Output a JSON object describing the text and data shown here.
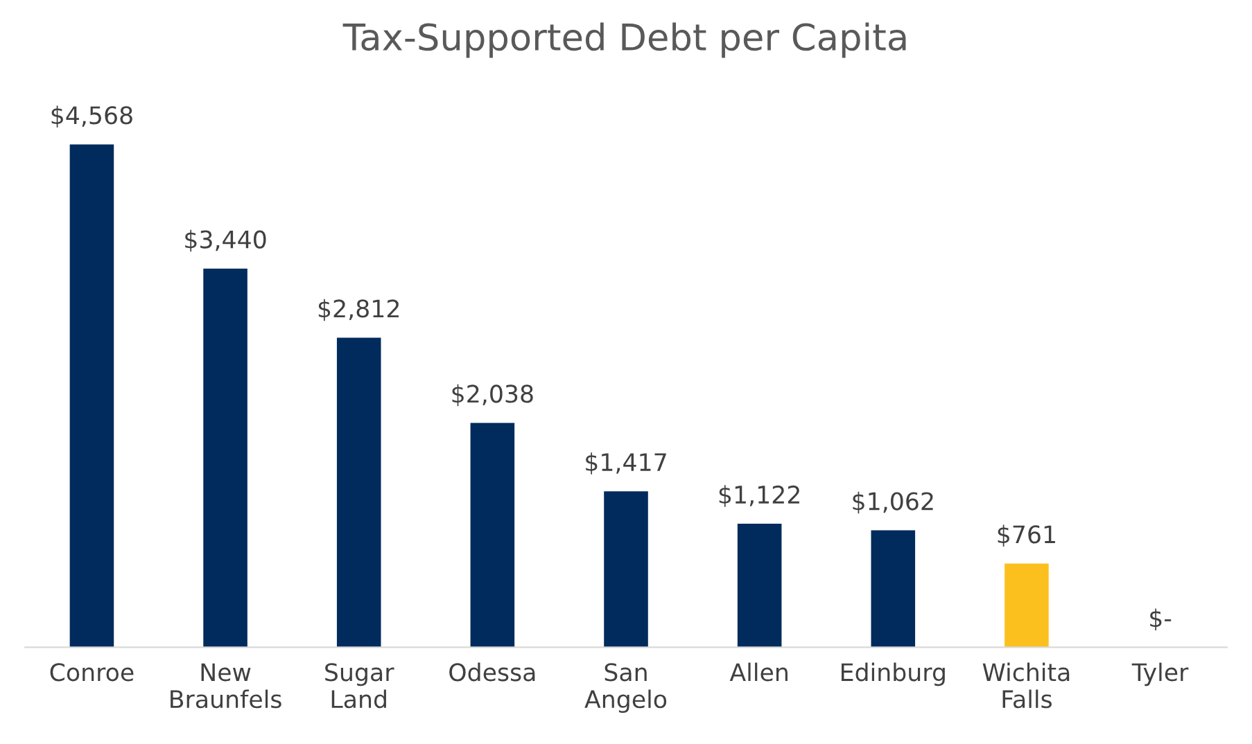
{
  "chart_data": {
    "type": "bar",
    "title": "Tax-Supported Debt per Capita",
    "categories": [
      "Conroe",
      "New\nBraunfels",
      "Sugar\nLand",
      "Odessa",
      "San\nAngelo",
      "Allen",
      "Edinburg",
      "Wichita\nFalls",
      "Tyler"
    ],
    "values": [
      4568,
      3440,
      2812,
      2038,
      1417,
      1122,
      1062,
      761,
      0
    ],
    "colors": [
      "#002b5c",
      "#002b5c",
      "#002b5c",
      "#002b5c",
      "#002b5c",
      "#002b5c",
      "#002b5c",
      "#fcc01e",
      "#002b5c"
    ],
    "value_labels": [
      "$4,568",
      "$3,440",
      "$2,812",
      "$2,038",
      "$1,417",
      "$1,122",
      "$1,062",
      "$761",
      "$-"
    ],
    "grid": false,
    "legend": false
  }
}
